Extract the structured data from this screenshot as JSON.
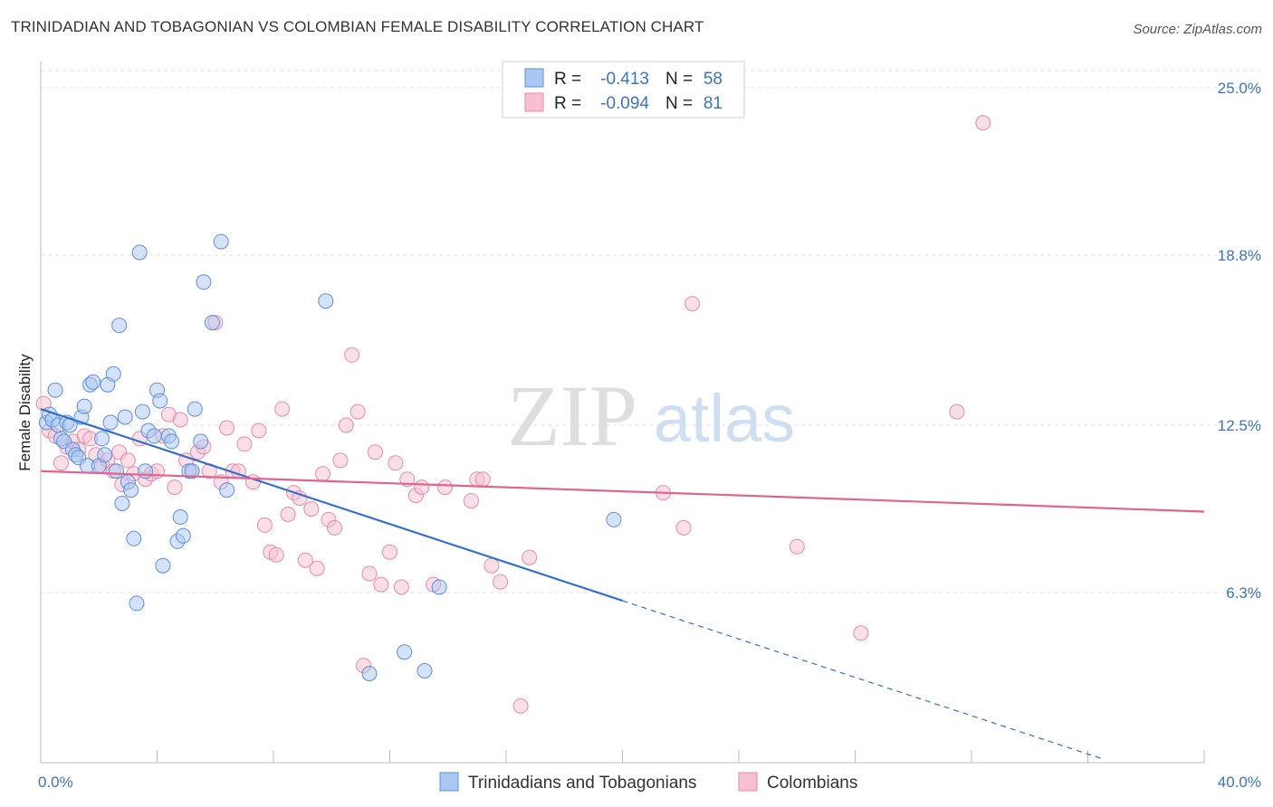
{
  "header": {
    "title": "TRINIDADIAN AND TOBAGONIAN VS COLOMBIAN FEMALE DISABILITY CORRELATION CHART",
    "source": "Source: ZipAtlas.com"
  },
  "watermark": {
    "zip": "ZIP",
    "atlas": "atlas"
  },
  "chart_data": {
    "type": "scatter",
    "title": "TRINIDADIAN AND TOBAGONIAN VS COLOMBIAN FEMALE DISABILITY CORRELATION CHART",
    "xlabel": "",
    "ylabel": "Female Disability",
    "xlim": [
      0,
      40
    ],
    "ylim": [
      0,
      25
    ],
    "x_tick_labels": {
      "left": "0.0%",
      "right": "40.0%"
    },
    "y_ticks": [
      {
        "value": 25.0,
        "label": "25.0%"
      },
      {
        "value": 18.8,
        "label": "18.8%"
      },
      {
        "value": 12.5,
        "label": "12.5%"
      },
      {
        "value": 6.3,
        "label": "6.3%"
      }
    ],
    "legend_stats": [
      {
        "r_label": "R =",
        "r_value": "-0.413",
        "n_label": "N =",
        "n_value": "58"
      },
      {
        "r_label": "R =",
        "r_value": "-0.094",
        "n_label": "N =",
        "n_value": "81"
      }
    ],
    "series": [
      {
        "name": "Trinidadians and Tobagonians",
        "color": "#5b8fe0",
        "fill": "#a9c7f3",
        "trend": {
          "x0": 0.0,
          "y0": 13.1,
          "x1": 20.0,
          "y1": 6.0,
          "dash_to_x": 36.5
        },
        "points": [
          [
            0.2,
            12.6
          ],
          [
            0.3,
            12.9
          ],
          [
            0.4,
            12.7
          ],
          [
            0.5,
            13.8
          ],
          [
            0.6,
            12.5
          ],
          [
            0.7,
            12.0
          ],
          [
            0.8,
            11.9
          ],
          [
            0.9,
            12.6
          ],
          [
            1.0,
            12.5
          ],
          [
            1.1,
            11.6
          ],
          [
            1.2,
            11.4
          ],
          [
            1.3,
            11.3
          ],
          [
            1.4,
            12.8
          ],
          [
            1.5,
            13.2
          ],
          [
            1.6,
            11.0
          ],
          [
            1.7,
            14.0
          ],
          [
            1.8,
            14.1
          ],
          [
            2.0,
            11.0
          ],
          [
            2.1,
            12.0
          ],
          [
            2.2,
            11.4
          ],
          [
            2.3,
            14.0
          ],
          [
            2.4,
            12.6
          ],
          [
            2.5,
            14.4
          ],
          [
            2.6,
            10.8
          ],
          [
            2.7,
            16.2
          ],
          [
            2.8,
            9.6
          ],
          [
            2.9,
            12.8
          ],
          [
            3.0,
            10.4
          ],
          [
            3.1,
            10.1
          ],
          [
            3.2,
            8.3
          ],
          [
            3.3,
            5.9
          ],
          [
            3.4,
            18.9
          ],
          [
            3.5,
            13.0
          ],
          [
            3.6,
            10.8
          ],
          [
            3.7,
            12.3
          ],
          [
            3.9,
            12.1
          ],
          [
            4.0,
            13.8
          ],
          [
            4.1,
            13.4
          ],
          [
            4.2,
            7.3
          ],
          [
            4.4,
            12.1
          ],
          [
            4.5,
            11.9
          ],
          [
            4.7,
            8.2
          ],
          [
            4.8,
            9.1
          ],
          [
            4.9,
            8.4
          ],
          [
            5.1,
            10.8
          ],
          [
            5.2,
            10.8
          ],
          [
            5.3,
            13.1
          ],
          [
            5.5,
            11.9
          ],
          [
            5.6,
            17.8
          ],
          [
            5.9,
            16.3
          ],
          [
            6.2,
            19.3
          ],
          [
            6.4,
            10.1
          ],
          [
            9.8,
            17.1
          ],
          [
            11.3,
            3.3
          ],
          [
            12.5,
            4.1
          ],
          [
            13.2,
            3.4
          ],
          [
            13.7,
            6.5
          ],
          [
            19.7,
            9.0
          ]
        ]
      },
      {
        "name": "Colombians",
        "color": "#e889a8",
        "fill": "#f7bfd0",
        "trend": {
          "x0": 0.0,
          "y0": 10.8,
          "x1": 40.0,
          "y1": 9.3
        },
        "points": [
          [
            0.1,
            13.3
          ],
          [
            0.3,
            12.3
          ],
          [
            0.5,
            12.1
          ],
          [
            0.7,
            11.1
          ],
          [
            0.9,
            11.7
          ],
          [
            1.1,
            11.9
          ],
          [
            1.3,
            11.6
          ],
          [
            1.5,
            12.1
          ],
          [
            1.7,
            12.0
          ],
          [
            1.9,
            11.4
          ],
          [
            2.1,
            11.0
          ],
          [
            2.3,
            11.2
          ],
          [
            2.5,
            10.8
          ],
          [
            2.7,
            11.5
          ],
          [
            2.8,
            10.3
          ],
          [
            3.0,
            11.2
          ],
          [
            3.2,
            10.7
          ],
          [
            3.4,
            12.0
          ],
          [
            3.6,
            10.5
          ],
          [
            3.8,
            10.7
          ],
          [
            4.0,
            10.8
          ],
          [
            4.2,
            12.1
          ],
          [
            4.4,
            12.9
          ],
          [
            4.6,
            10.2
          ],
          [
            4.8,
            12.7
          ],
          [
            5.0,
            11.2
          ],
          [
            5.2,
            10.8
          ],
          [
            5.4,
            11.5
          ],
          [
            5.6,
            11.7
          ],
          [
            5.8,
            10.8
          ],
          [
            6.0,
            16.3
          ],
          [
            6.2,
            10.4
          ],
          [
            6.4,
            12.4
          ],
          [
            6.6,
            10.8
          ],
          [
            6.8,
            10.8
          ],
          [
            7.0,
            11.8
          ],
          [
            7.3,
            10.4
          ],
          [
            7.5,
            12.3
          ],
          [
            7.7,
            8.8
          ],
          [
            7.9,
            7.8
          ],
          [
            8.1,
            7.7
          ],
          [
            8.3,
            13.1
          ],
          [
            8.5,
            9.2
          ],
          [
            8.7,
            10.0
          ],
          [
            8.9,
            9.8
          ],
          [
            9.1,
            7.5
          ],
          [
            9.3,
            9.4
          ],
          [
            9.5,
            7.2
          ],
          [
            9.7,
            10.7
          ],
          [
            9.9,
            9.0
          ],
          [
            10.1,
            8.7
          ],
          [
            10.3,
            11.2
          ],
          [
            10.5,
            12.5
          ],
          [
            10.7,
            15.1
          ],
          [
            10.9,
            13.0
          ],
          [
            11.1,
            3.6
          ],
          [
            11.3,
            7.0
          ],
          [
            11.5,
            11.5
          ],
          [
            11.7,
            6.6
          ],
          [
            12.0,
            7.8
          ],
          [
            12.2,
            11.1
          ],
          [
            12.4,
            6.5
          ],
          [
            12.6,
            10.5
          ],
          [
            12.9,
            9.9
          ],
          [
            13.1,
            10.2
          ],
          [
            13.5,
            6.6
          ],
          [
            13.9,
            10.2
          ],
          [
            14.8,
            9.7
          ],
          [
            15.0,
            10.5
          ],
          [
            15.2,
            10.5
          ],
          [
            15.5,
            7.3
          ],
          [
            15.8,
            6.7
          ],
          [
            16.5,
            2.1
          ],
          [
            16.8,
            7.6
          ],
          [
            21.4,
            10.0
          ],
          [
            22.1,
            8.7
          ],
          [
            22.4,
            17.0
          ],
          [
            26.0,
            8.0
          ],
          [
            28.2,
            4.8
          ],
          [
            31.5,
            13.0
          ],
          [
            32.4,
            23.7
          ]
        ]
      }
    ]
  },
  "bottom_legend": [
    {
      "label": "Trinidadians and Tobagonians",
      "color": "#a9c7f3",
      "stroke": "#5b8fe0"
    },
    {
      "label": "Colombians",
      "color": "#f7bfd0",
      "stroke": "#e889a8"
    }
  ]
}
